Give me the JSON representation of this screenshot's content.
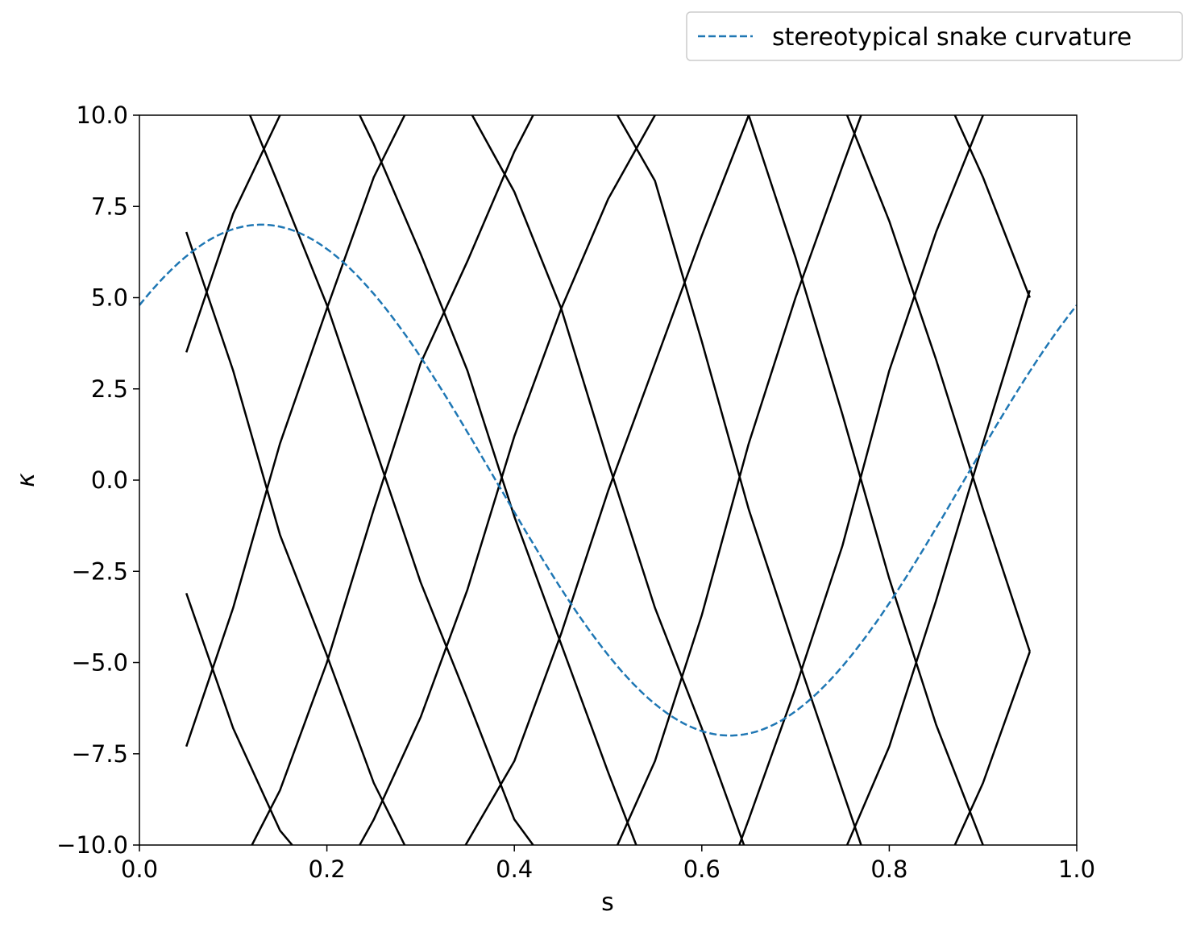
{
  "chart_data": {
    "type": "line",
    "title": "",
    "xlabel": "s",
    "ylabel": "κ",
    "xlim": [
      0,
      1
    ],
    "ylim": [
      -10,
      10
    ],
    "x_ticks": [
      0.0,
      0.2,
      0.4,
      0.6,
      0.8,
      1.0
    ],
    "x_tick_labels": [
      "0.0",
      "0.2",
      "0.4",
      "0.6",
      "0.8",
      "1.0"
    ],
    "y_ticks": [
      -10,
      -7.5,
      -5,
      -2.5,
      0,
      2.5,
      5,
      7.5,
      10
    ],
    "y_tick_labels": [
      "−10.0",
      "−7.5",
      "−5.0",
      "−2.5",
      "0.0",
      "2.5",
      "5.0",
      "7.5",
      "10.0"
    ],
    "grid": false,
    "legend_position": "above-top-right",
    "reference_series": {
      "name": "stereotypical snake curvature",
      "style": "dashed",
      "color": "#1f77b4",
      "amplitude": 7,
      "period": 1,
      "phase_peak_s": 0.13
    },
    "series": [
      {
        "color": "#000000",
        "points": [
          [
            0.05,
            3.5
          ],
          [
            0.1,
            7.3
          ],
          [
            0.15,
            10.0
          ]
        ]
      },
      {
        "color": "#000000",
        "points": [
          [
            0.05,
            -7.3
          ],
          [
            0.1,
            -3.5
          ],
          [
            0.15,
            1.0
          ],
          [
            0.2,
            4.7
          ],
          [
            0.25,
            8.3
          ],
          [
            0.283,
            10.0
          ]
        ]
      },
      {
        "color": "#000000",
        "points": [
          [
            0.12,
            -10.0
          ],
          [
            0.15,
            -8.5
          ],
          [
            0.2,
            -5.0
          ],
          [
            0.25,
            -0.8
          ],
          [
            0.3,
            3.2
          ],
          [
            0.35,
            6.0
          ],
          [
            0.4,
            9.0
          ],
          [
            0.42,
            10.0
          ]
        ]
      },
      {
        "color": "#000000",
        "points": [
          [
            0.235,
            -10.0
          ],
          [
            0.25,
            -9.3
          ],
          [
            0.3,
            -6.5
          ],
          [
            0.35,
            -3.0
          ],
          [
            0.4,
            1.2
          ],
          [
            0.45,
            4.7
          ],
          [
            0.5,
            7.7
          ],
          [
            0.55,
            10.0
          ]
        ]
      },
      {
        "color": "#000000",
        "points": [
          [
            0.348,
            -10.0
          ],
          [
            0.4,
            -7.7
          ],
          [
            0.45,
            -4.2
          ],
          [
            0.5,
            -0.3
          ],
          [
            0.55,
            3.2
          ],
          [
            0.6,
            6.7
          ],
          [
            0.65,
            10.0
          ]
        ]
      },
      {
        "color": "#000000",
        "points": [
          [
            0.51,
            -10.0
          ],
          [
            0.55,
            -7.7
          ],
          [
            0.6,
            -3.7
          ],
          [
            0.65,
            1.0
          ],
          [
            0.7,
            5.0
          ],
          [
            0.75,
            8.6
          ],
          [
            0.77,
            10.0
          ]
        ]
      },
      {
        "color": "#000000",
        "points": [
          [
            0.64,
            -10.0
          ],
          [
            0.65,
            -9.3
          ],
          [
            0.7,
            -5.7
          ],
          [
            0.75,
            -1.8
          ],
          [
            0.8,
            3.0
          ],
          [
            0.85,
            6.8
          ],
          [
            0.9,
            10.0
          ]
        ]
      },
      {
        "color": "#000000",
        "points": [
          [
            0.755,
            -10.0
          ],
          [
            0.8,
            -7.3
          ],
          [
            0.85,
            -3.3
          ],
          [
            0.9,
            1.0
          ],
          [
            0.95,
            5.2
          ]
        ]
      },
      {
        "color": "#000000",
        "points": [
          [
            0.87,
            -10.0
          ],
          [
            0.9,
            -8.3
          ],
          [
            0.95,
            -4.7
          ]
        ]
      },
      {
        "color": "#000000",
        "points": [
          [
            0.05,
            6.8
          ],
          [
            0.1,
            3.0
          ],
          [
            0.15,
            -1.5
          ],
          [
            0.2,
            -4.8
          ],
          [
            0.25,
            -8.3
          ],
          [
            0.283,
            -10.0
          ]
        ]
      },
      {
        "color": "#000000",
        "points": [
          [
            0.05,
            -3.1
          ],
          [
            0.1,
            -6.8
          ],
          [
            0.15,
            -9.6
          ],
          [
            0.163,
            -10.0
          ]
        ]
      },
      {
        "color": "#000000",
        "points": [
          [
            0.118,
            10.0
          ],
          [
            0.15,
            8.0
          ],
          [
            0.2,
            4.8
          ],
          [
            0.25,
            1.0
          ],
          [
            0.3,
            -2.8
          ],
          [
            0.35,
            -6.0
          ],
          [
            0.4,
            -9.3
          ],
          [
            0.42,
            -10.0
          ]
        ]
      },
      {
        "color": "#000000",
        "points": [
          [
            0.235,
            10.0
          ],
          [
            0.25,
            9.2
          ],
          [
            0.3,
            6.2
          ],
          [
            0.35,
            3.0
          ],
          [
            0.4,
            -1.0
          ],
          [
            0.45,
            -4.5
          ],
          [
            0.5,
            -8.0
          ],
          [
            0.53,
            -10.0
          ]
        ]
      },
      {
        "color": "#000000",
        "points": [
          [
            0.355,
            10.0
          ],
          [
            0.4,
            7.9
          ],
          [
            0.45,
            4.7
          ],
          [
            0.5,
            0.5
          ],
          [
            0.55,
            -3.5
          ],
          [
            0.6,
            -6.8
          ],
          [
            0.645,
            -10.0
          ]
        ]
      },
      {
        "color": "#000000",
        "points": [
          [
            0.51,
            10.0
          ],
          [
            0.55,
            8.2
          ],
          [
            0.6,
            3.8
          ],
          [
            0.65,
            -0.8
          ],
          [
            0.7,
            -4.7
          ],
          [
            0.75,
            -8.5
          ],
          [
            0.77,
            -10.0
          ]
        ]
      },
      {
        "color": "#000000",
        "points": [
          [
            0.65,
            10.0
          ],
          [
            0.7,
            6.1
          ],
          [
            0.75,
            1.8
          ],
          [
            0.8,
            -2.7
          ],
          [
            0.85,
            -6.7
          ],
          [
            0.9,
            -10.0
          ]
        ]
      },
      {
        "color": "#000000",
        "points": [
          [
            0.755,
            10.0
          ],
          [
            0.8,
            7.1
          ],
          [
            0.85,
            3.3
          ],
          [
            0.9,
            -0.8
          ],
          [
            0.95,
            -4.7
          ]
        ]
      },
      {
        "color": "#000000",
        "points": [
          [
            0.87,
            10.0
          ],
          [
            0.9,
            8.3
          ],
          [
            0.95,
            5.0
          ]
        ]
      }
    ]
  }
}
